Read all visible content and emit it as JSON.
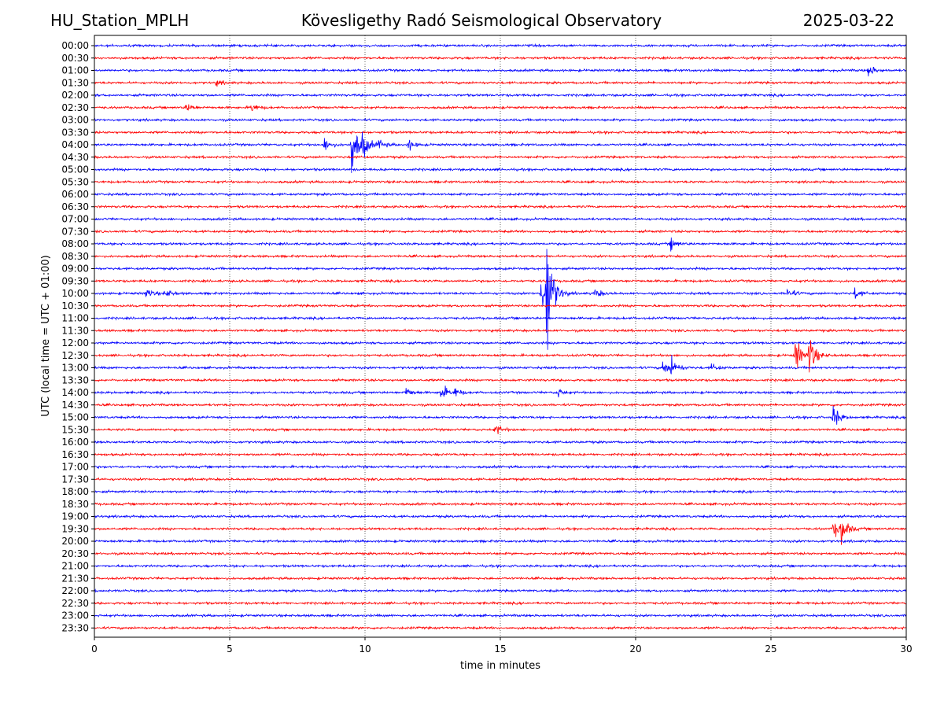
{
  "header": {
    "station": "HU_Station_MPLH",
    "observatory": "Kövesligethy Radó Seismological Observatory",
    "date": "2025-03-22"
  },
  "chart_data": {
    "type": "line",
    "title": "Kövesligethy Radó Seismological Observatory",
    "xlabel": "time in minutes",
    "ylabel": "UTC (local time = UTC + 01:00)",
    "xlim": [
      0,
      30
    ],
    "x_ticks": [
      "0",
      "5",
      "10",
      "15",
      "20",
      "25",
      "30"
    ],
    "grid": "vertical dotted at x ticks",
    "series_colors": [
      "#0000ff",
      "#ff0000"
    ],
    "color_pattern": "alternating per row starting with blue at 00:00",
    "rows": [
      "00:00",
      "00:30",
      "01:00",
      "01:30",
      "02:00",
      "02:30",
      "03:00",
      "03:30",
      "04:00",
      "04:30",
      "05:00",
      "05:30",
      "06:00",
      "06:30",
      "07:00",
      "07:30",
      "08:00",
      "08:30",
      "09:00",
      "09:30",
      "10:00",
      "10:30",
      "11:00",
      "11:30",
      "12:00",
      "12:30",
      "13:00",
      "13:30",
      "14:00",
      "14:30",
      "15:00",
      "15:30",
      "16:00",
      "16:30",
      "17:00",
      "17:30",
      "18:00",
      "18:30",
      "19:00",
      "19:30",
      "20:00",
      "20:30",
      "21:00",
      "21:30",
      "22:00",
      "22:30",
      "23:00",
      "23:30"
    ],
    "events": [
      {
        "row": "01:00",
        "minute": 28.6,
        "amplitude": 8
      },
      {
        "row": "01:30",
        "minute": 4.5,
        "amplitude": 4
      },
      {
        "row": "02:30",
        "minute": 3.4,
        "amplitude": 6
      },
      {
        "row": "02:30",
        "minute": 5.8,
        "amplitude": 6
      },
      {
        "row": "04:00",
        "minute": 8.5,
        "amplitude": 9
      },
      {
        "row": "04:00",
        "minute": 9.5,
        "amplitude": 40
      },
      {
        "row": "04:00",
        "minute": 9.9,
        "amplitude": 18
      },
      {
        "row": "04:00",
        "minute": 10.5,
        "amplitude": 6
      },
      {
        "row": "04:00",
        "minute": 11.6,
        "amplitude": 7
      },
      {
        "row": "08:00",
        "minute": 21.3,
        "amplitude": 8
      },
      {
        "row": "10:00",
        "minute": 1.9,
        "amplitude": 7
      },
      {
        "row": "10:00",
        "minute": 2.6,
        "amplitude": 6
      },
      {
        "row": "10:00",
        "minute": 16.5,
        "amplitude": 22
      },
      {
        "row": "10:00",
        "minute": 16.7,
        "amplitude": 95
      },
      {
        "row": "10:00",
        "minute": 18.5,
        "amplitude": 7
      },
      {
        "row": "10:00",
        "minute": 25.6,
        "amplitude": 8
      },
      {
        "row": "10:00",
        "minute": 28.1,
        "amplitude": 7
      },
      {
        "row": "12:30",
        "minute": 25.9,
        "amplitude": 25
      },
      {
        "row": "12:30",
        "minute": 26.4,
        "amplitude": 28
      },
      {
        "row": "13:00",
        "minute": 21.0,
        "amplitude": 10
      },
      {
        "row": "13:00",
        "minute": 21.3,
        "amplitude": 14
      },
      {
        "row": "13:00",
        "minute": 22.8,
        "amplitude": 5
      },
      {
        "row": "14:00",
        "minute": 11.5,
        "amplitude": 7
      },
      {
        "row": "14:00",
        "minute": 12.8,
        "amplitude": 12
      },
      {
        "row": "14:00",
        "minute": 13.3,
        "amplitude": 6
      },
      {
        "row": "14:00",
        "minute": 17.1,
        "amplitude": 6
      },
      {
        "row": "15:00",
        "minute": 27.3,
        "amplitude": 16
      },
      {
        "row": "15:30",
        "minute": 14.8,
        "amplitude": 8
      },
      {
        "row": "19:30",
        "minute": 27.3,
        "amplitude": 12
      },
      {
        "row": "19:30",
        "minute": 27.6,
        "amplitude": 18
      }
    ]
  }
}
